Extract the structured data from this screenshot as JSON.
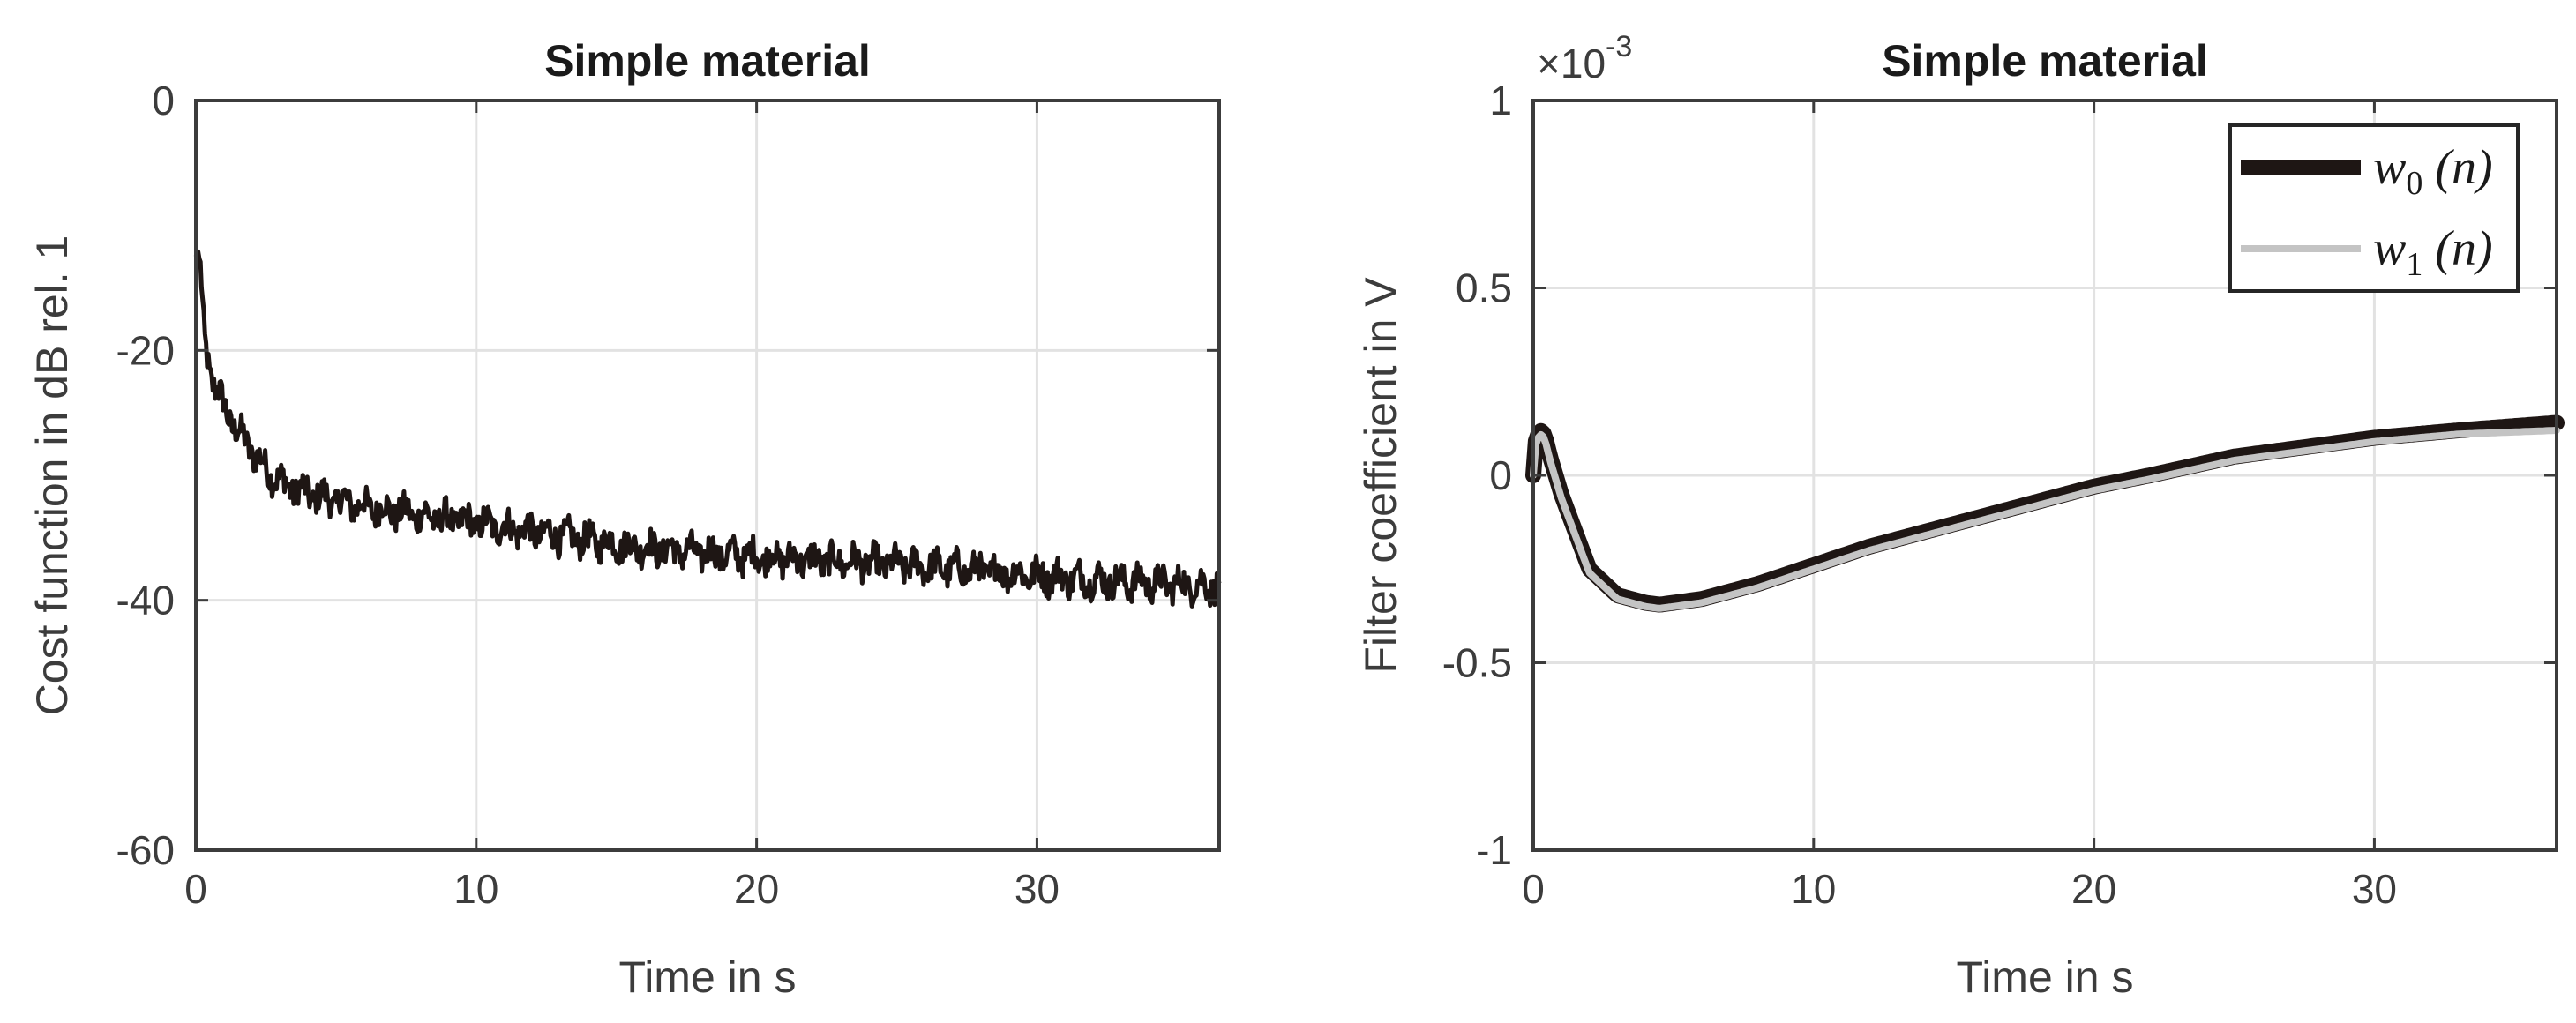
{
  "chart_data": [
    {
      "type": "line",
      "title": "Simple material",
      "xlabel": "Time in s",
      "ylabel": "Cost function in dB rel. 1",
      "xlim": [
        0,
        36.5
      ],
      "ylim": [
        -60,
        0
      ],
      "xticks": [
        0,
        10,
        20,
        30
      ],
      "yticks": [
        -60,
        -40,
        -20,
        0
      ],
      "grid": true,
      "noise_amplitude": 1.2,
      "series": [
        {
          "color": "#1e1614",
          "x": [
            0,
            0.1,
            0.2,
            0.3,
            0.5,
            0.7,
            1,
            1.5,
            2,
            2.5,
            3,
            4,
            5,
            6,
            8,
            10,
            12,
            14,
            16,
            18,
            20,
            22,
            24,
            26,
            28,
            30,
            32,
            34,
            36,
            36.5
          ],
          "y": [
            -12.5,
            -12,
            -15,
            -19,
            -21.5,
            -23,
            -24.5,
            -26.5,
            -28,
            -29.5,
            -30.5,
            -31.5,
            -32,
            -32.5,
            -33.2,
            -33.8,
            -34.5,
            -35.2,
            -35.8,
            -36.2,
            -36.5,
            -36.8,
            -37,
            -37.3,
            -37.6,
            -38,
            -38.4,
            -38.6,
            -38.8,
            -38.9
          ]
        }
      ]
    },
    {
      "type": "line",
      "title": "Simple material",
      "xlabel": "Time in s",
      "ylabel": "Filter coefficient in V",
      "xlim": [
        0,
        36.5
      ],
      "ylim": [
        -1,
        1
      ],
      "xticks": [
        0,
        10,
        20,
        30
      ],
      "yticks": [
        -1,
        -0.5,
        0,
        0.5,
        1
      ],
      "ytick_labels": [
        "-1",
        "-0.5",
        "0",
        "0.5",
        "1"
      ],
      "y_multiplier": "×10",
      "y_exponent": "-3",
      "grid": true,
      "legend_position": "top-right",
      "series": [
        {
          "name": "w",
          "name_sub": "0",
          "name_suffix": " (n)",
          "color": "#1e1614",
          "x": [
            0,
            0.1,
            0.25,
            0.4,
            0.6,
            1,
            1.5,
            2,
            3,
            4,
            4.5,
            5,
            6,
            7,
            8,
            10,
            12,
            15,
            18,
            20,
            22,
            25,
            28,
            30,
            33,
            36.5
          ],
          "y": [
            0,
            0.1,
            0.12,
            0.11,
            0.05,
            -0.05,
            -0.15,
            -0.25,
            -0.32,
            -0.34,
            -0.345,
            -0.34,
            -0.33,
            -0.31,
            -0.29,
            -0.24,
            -0.19,
            -0.13,
            -0.07,
            -0.03,
            0.0,
            0.05,
            0.08,
            0.1,
            0.12,
            0.14
          ]
        },
        {
          "name": "w",
          "name_sub": "1",
          "name_suffix": " (n)",
          "color": "#c4c4c4",
          "x": [
            0,
            0.1,
            0.25,
            0.4,
            0.6,
            1,
            1.5,
            2,
            3,
            4,
            4.5,
            5,
            6,
            7,
            8,
            10,
            12,
            15,
            18,
            20,
            22,
            25,
            28,
            30,
            33,
            36.5
          ],
          "y": [
            0,
            0.09,
            0.11,
            0.1,
            0.04,
            -0.06,
            -0.16,
            -0.26,
            -0.33,
            -0.35,
            -0.355,
            -0.35,
            -0.34,
            -0.32,
            -0.3,
            -0.25,
            -0.2,
            -0.14,
            -0.08,
            -0.04,
            -0.01,
            0.04,
            0.07,
            0.09,
            0.11,
            0.12
          ]
        }
      ]
    }
  ]
}
